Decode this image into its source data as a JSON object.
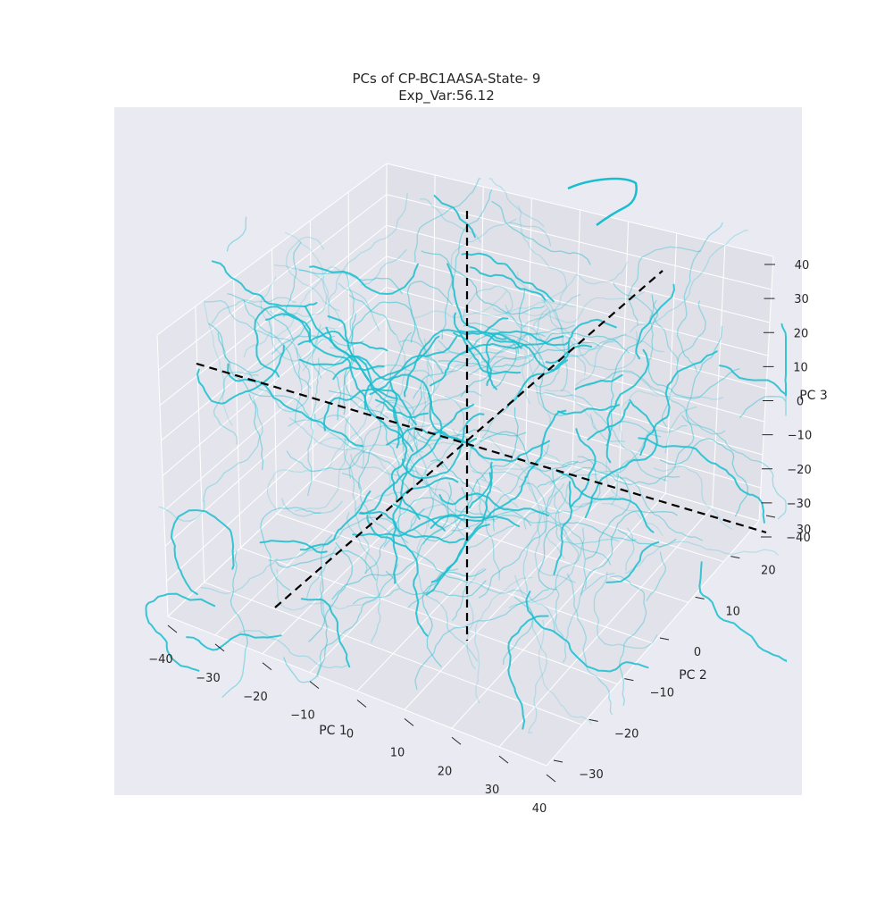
{
  "chart_data": {
    "type": "line",
    "projection": "3d",
    "title": "PCs of CP-BC1AASA-State- 9",
    "subtitle": "Exp_Var:56.12",
    "xlabel": "PC 1",
    "ylabel": "PC 2",
    "zlabel": "PC 3",
    "xticks": [
      "−40",
      "−30",
      "−20",
      "−10",
      "0",
      "10",
      "20",
      "30",
      "40"
    ],
    "yticks": [
      "−30",
      "−20",
      "−10",
      "0",
      "10",
      "20",
      "30"
    ],
    "zticks": [
      "−40",
      "−30",
      "−20",
      "−10",
      "0",
      "10",
      "20",
      "30",
      "40"
    ],
    "xlim": [
      -40,
      40
    ],
    "ylim": [
      -30,
      30
    ],
    "zlim": [
      -40,
      40
    ],
    "grid": true,
    "reference_axes": "black dashed lines through origin along PC 1, PC 2, PC 3",
    "series_color": "#17becf",
    "axis_line_color": "#000000",
    "background_color": "#eaeaf2",
    "note": "Hundreds of semi-transparent cyan trajectories fill the cube; individual point values are not recoverable from the image."
  }
}
